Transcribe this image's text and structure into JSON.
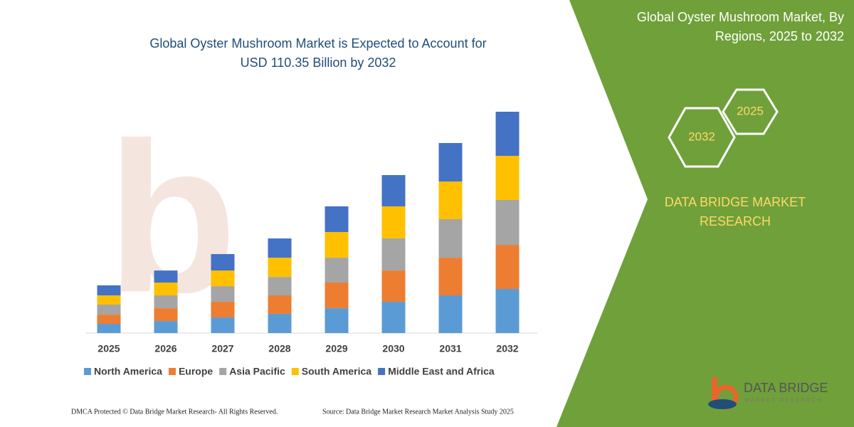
{
  "chart_data": {
    "type": "stacked-bar",
    "title": [
      "Global Oyster Mushroom Market is Expected to Account for",
      "USD 110.35 Billion by 2032"
    ],
    "categories": [
      "2025",
      "2026",
      "2027",
      "2028",
      "2029",
      "2030",
      "2031",
      "2032"
    ],
    "series": [
      {
        "name": "North America",
        "color": "#5b9bd5",
        "values": [
          4.6,
          6.0,
          7.8,
          9.6,
          12.4,
          15.6,
          18.8,
          22.0
        ]
      },
      {
        "name": "Europe",
        "color": "#ed7d31",
        "values": [
          4.6,
          6.4,
          7.8,
          9.2,
          12.8,
          15.6,
          18.8,
          22.0
        ]
      },
      {
        "name": "Asia Pacific",
        "color": "#a5a5a5",
        "values": [
          5.0,
          6.4,
          7.8,
          9.2,
          12.4,
          16.0,
          19.2,
          22.4
        ]
      },
      {
        "name": "South America",
        "color": "#ffc000",
        "values": [
          4.6,
          6.4,
          7.8,
          9.6,
          12.8,
          16.0,
          18.8,
          22.0
        ]
      },
      {
        "name": "Middle East and Africa",
        "color": "#4472c4",
        "values": [
          5.0,
          6.0,
          8.2,
          9.6,
          12.8,
          15.6,
          19.2,
          22.0
        ]
      }
    ],
    "legend": "bottom"
  },
  "panel": {
    "title": [
      "Global Oyster Mushroom Market, By",
      "Regions, 2025 to 2032"
    ],
    "hexagons": [
      "2032",
      "2025"
    ],
    "brand": [
      "DATA BRIDGE MARKET",
      "RESEARCH"
    ]
  },
  "logo": {
    "name": "DATA BRIDGE",
    "tagline": "MARKET RESEARCH"
  },
  "footer": {
    "left": "DMCA Protected © Data Bridge Market Research-  All Rights Reserved.",
    "right": "Source: Data Bridge Market Research  Market Analysis Study 2025"
  }
}
